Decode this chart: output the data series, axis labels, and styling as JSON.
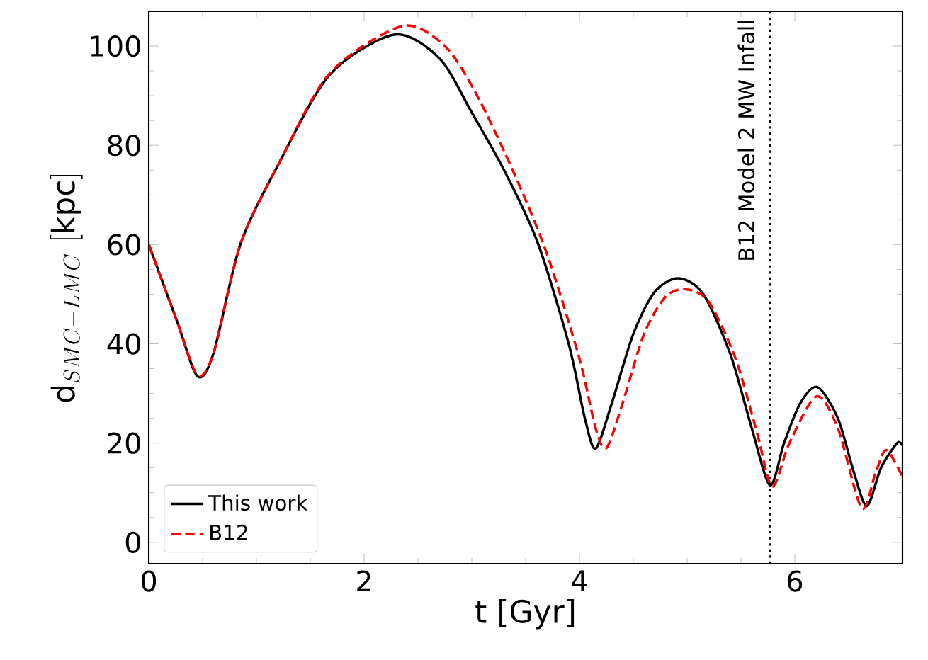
{
  "chart_data": {
    "type": "line",
    "xlabel": "t [Gyr]",
    "ylabel": "\\mathrm{d}_{SMC-LMC}\\ \\mathrm{[kpc]}",
    "xlim": [
      0,
      7
    ],
    "ylim": [
      -4.3,
      107
    ],
    "xticks": [
      0,
      2,
      4,
      6
    ],
    "yticks": [
      0,
      20,
      40,
      60,
      80,
      100
    ],
    "grid": false,
    "legend": "bottom left",
    "series": [
      {
        "name": "This work",
        "color": "#000000",
        "line_style": "solid",
        "x": [
          0,
          0.26,
          0.45,
          0.6,
          0.85,
          1.2,
          1.68,
          2.28,
          2.7,
          3.0,
          3.3,
          3.61,
          3.9,
          4.05,
          4.15,
          4.3,
          4.5,
          4.7,
          4.92,
          5.15,
          5.4,
          5.6,
          5.77,
          5.9,
          6.05,
          6.21,
          6.4,
          6.55,
          6.67,
          6.8,
          6.95,
          7
        ],
        "values": [
          60,
          44.7,
          33.5,
          38,
          60,
          76,
          94.2,
          102.3,
          97.5,
          86.6,
          75,
          60.5,
          40,
          25,
          18.9,
          28,
          42,
          50.5,
          53.2,
          50,
          38,
          23,
          11.5,
          20,
          28,
          31.3,
          25,
          14,
          7.3,
          15,
          20,
          19.5
        ]
      },
      {
        "name": "B12",
        "color": "#ff0000",
        "line_style": "dashed",
        "x": [
          0,
          0.26,
          0.45,
          0.6,
          0.85,
          1.2,
          1.68,
          2.35,
          2.75,
          3.05,
          3.4,
          3.7,
          4.0,
          4.15,
          4.25,
          4.4,
          4.6,
          4.8,
          4.99,
          5.2,
          5.45,
          5.65,
          5.79,
          5.95,
          6.2,
          6.4,
          6.62,
          6.75,
          6.85,
          7
        ],
        "values": [
          60,
          44.7,
          33.8,
          38,
          60,
          76,
          94.5,
          104,
          100,
          90,
          74,
          58,
          37,
          23,
          19,
          28,
          42,
          49.5,
          51,
          48.5,
          37,
          22,
          11.2,
          20,
          29.4,
          23,
          6.9,
          14,
          18.6,
          13.2
        ]
      }
    ],
    "ref_lines": [
      {
        "axis": "x",
        "value": 5.77,
        "label": "B12 Model 2 MW Infall",
        "color": "#000000",
        "line_style": "dotted"
      }
    ]
  }
}
